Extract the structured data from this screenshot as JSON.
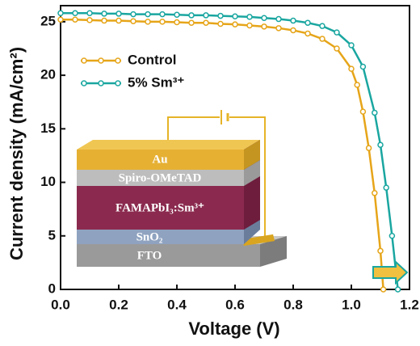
{
  "chart_data": {
    "type": "line",
    "xlabel": "Voltage (V)",
    "ylabel": "Current density (mA/cm²)",
    "xlim": [
      0,
      1.2
    ],
    "ylim": [
      0,
      26.5
    ],
    "xticks": [
      {
        "value": 0,
        "label": "0.0"
      },
      0.2,
      0.4,
      0.6,
      0.8,
      {
        "value": 1,
        "label": "1.0"
      },
      1.2
    ],
    "yticks": [
      0,
      5,
      10,
      15,
      20,
      25
    ],
    "legend": "upper left",
    "series": [
      {
        "name": "Control",
        "color": "#e6a519",
        "x": [
          0,
          0.05,
          0.1,
          0.15,
          0.2,
          0.25,
          0.3,
          0.35,
          0.4,
          0.45,
          0.5,
          0.55,
          0.6,
          0.65,
          0.7,
          0.75,
          0.8,
          0.85,
          0.9,
          0.95,
          1.0,
          1.02,
          1.04,
          1.06,
          1.08,
          1.1,
          1.11
        ],
        "values": [
          25.2,
          25.2,
          25.15,
          25.1,
          25.1,
          25.05,
          25.0,
          25.0,
          24.95,
          24.9,
          24.9,
          24.8,
          24.75,
          24.65,
          24.55,
          24.4,
          24.2,
          23.9,
          23.4,
          22.5,
          20.6,
          19.1,
          16.6,
          13.2,
          9.0,
          3.6,
          0
        ]
      },
      {
        "name": "5% Sm³⁺",
        "color": "#1aa6a0",
        "x": [
          0,
          0.05,
          0.1,
          0.15,
          0.2,
          0.25,
          0.3,
          0.35,
          0.4,
          0.45,
          0.5,
          0.55,
          0.6,
          0.65,
          0.7,
          0.75,
          0.8,
          0.85,
          0.9,
          0.95,
          1.0,
          1.04,
          1.08,
          1.1,
          1.12,
          1.14,
          1.16
        ],
        "values": [
          25.8,
          25.8,
          25.8,
          25.75,
          25.75,
          25.7,
          25.7,
          25.7,
          25.65,
          25.6,
          25.6,
          25.55,
          25.5,
          25.45,
          25.35,
          25.25,
          25.1,
          24.9,
          24.6,
          24.0,
          22.8,
          20.8,
          16.5,
          13.5,
          9.5,
          5.0,
          0
        ]
      }
    ]
  },
  "diagram": {
    "layers": [
      "Au",
      "Spiro-OMeTAD",
      "FAMAPbI₃:Sm³⁺",
      "SnO₂",
      "FTO"
    ]
  }
}
